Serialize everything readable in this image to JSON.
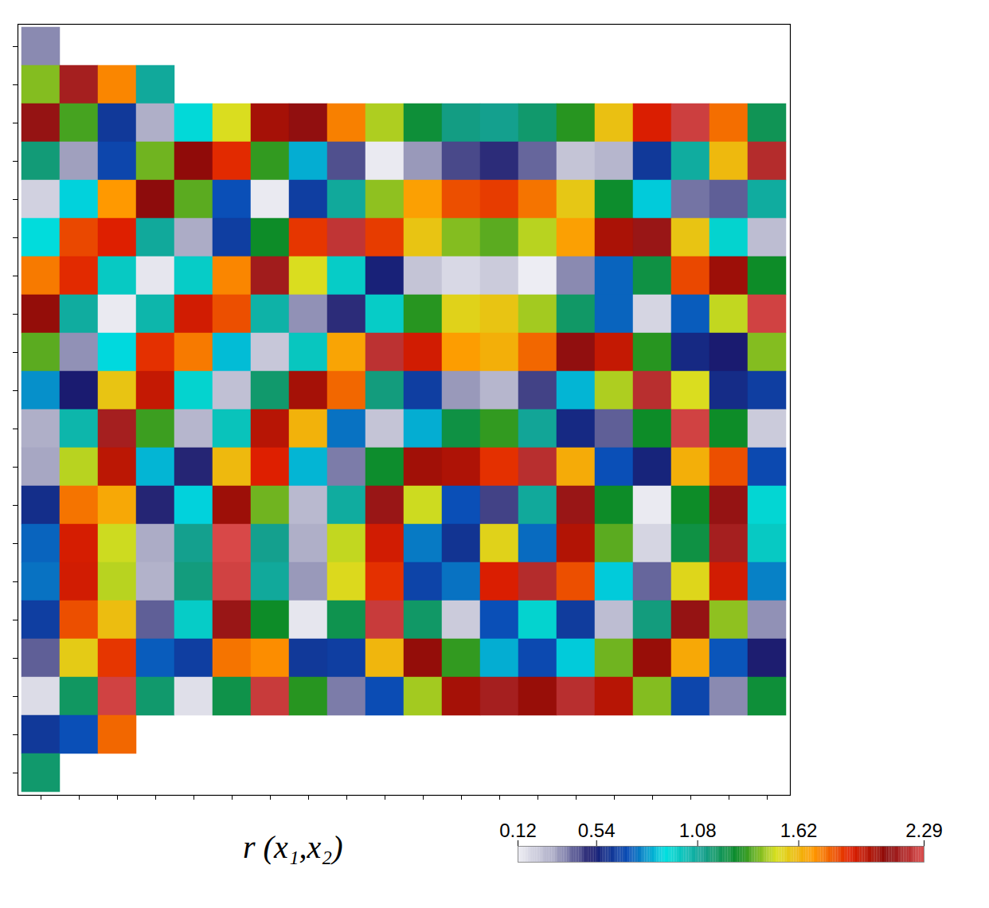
{
  "chart_data": {
    "type": "heatmap",
    "tick_labels": false,
    "colorbar": {
      "label": "r (x₁,x₂)",
      "range": [
        0.12,
        2.29
      ],
      "ticks": [
        0.12,
        0.54,
        1.08,
        1.62,
        2.29
      ]
    },
    "cells": [
      [
        0.36,
        null,
        null,
        null,
        null,
        null,
        null,
        null,
        null,
        null,
        null,
        null,
        null,
        null,
        null,
        null,
        null,
        null,
        null,
        null
      ],
      [
        1.42,
        2.16,
        1.73,
        1.08,
        null,
        null,
        null,
        null,
        null,
        null,
        null,
        null,
        null,
        null,
        null,
        null,
        null,
        null,
        null,
        null
      ],
      [
        2.12,
        1.36,
        0.63,
        0.3,
        0.93,
        1.51,
        2.03,
        2.11,
        1.74,
        1.46,
        1.26,
        1.13,
        1.11,
        1.17,
        1.33,
        1.59,
        1.91,
        2.26,
        1.77,
        1.21
      ],
      [
        1.15,
        0.33,
        0.68,
        1.4,
        2.08,
        1.88,
        1.34,
        0.84,
        0.44,
        0.13,
        0.34,
        0.45,
        0.49,
        0.41,
        0.24,
        0.28,
        0.63,
        1.07,
        1.61,
        2.2
      ],
      [
        0.2,
        0.89,
        1.7,
        2.1,
        1.38,
        0.71,
        0.13,
        0.65,
        1.08,
        1.43,
        1.68,
        1.82,
        1.85,
        1.76,
        1.57,
        1.28,
        0.88,
        0.39,
        0.42,
        1.07
      ],
      [
        0.92,
        1.83,
        1.9,
        1.08,
        0.31,
        0.65,
        1.29,
        1.86,
        2.23,
        1.85,
        1.58,
        1.42,
        1.38,
        1.47,
        1.68,
        2.02,
        2.13,
        1.58,
        0.95,
        0.26
      ],
      [
        1.75,
        1.88,
        0.98,
        0.14,
        0.97,
        1.73,
        2.15,
        1.51,
        0.97,
        0.54,
        0.24,
        0.18,
        0.22,
        0.12,
        0.36,
        0.74,
        1.24,
        1.83,
        2.05,
        1.29
      ],
      [
        2.07,
        1.07,
        0.13,
        1.04,
        1.93,
        1.82,
        1.05,
        0.35,
        0.49,
        0.97,
        1.33,
        1.54,
        1.58,
        1.45,
        1.18,
        0.74,
        0.19,
        0.73,
        1.48,
        2.27
      ],
      [
        1.38,
        0.35,
        0.9,
        1.87,
        1.75,
        0.86,
        0.23,
        0.99,
        1.67,
        2.22,
        1.93,
        1.69,
        1.64,
        1.78,
        2.11,
        1.96,
        1.33,
        0.57,
        0.52,
        1.42
      ],
      [
        0.8,
        0.52,
        1.58,
        1.96,
        0.95,
        0.25,
        1.17,
        2.03,
        1.78,
        1.14,
        0.65,
        0.34,
        0.28,
        0.46,
        0.85,
        1.46,
        2.21,
        1.51,
        0.58,
        0.65
      ],
      [
        0.3,
        1.04,
        2.16,
        1.35,
        0.28,
        1.0,
        1.99,
        1.63,
        0.76,
        0.24,
        0.84,
        1.24,
        1.34,
        1.09,
        0.57,
        0.42,
        1.29,
        2.27,
        1.29,
        0.22
      ],
      [
        0.32,
        1.47,
        1.98,
        0.85,
        0.5,
        1.61,
        1.9,
        0.85,
        0.38,
        1.28,
        2.04,
        2.01,
        1.87,
        2.21,
        1.65,
        0.71,
        0.55,
        1.64,
        1.82,
        0.69
      ],
      [
        0.59,
        1.76,
        1.66,
        0.5,
        0.89,
        2.05,
        1.4,
        0.27,
        1.07,
        2.13,
        1.49,
        0.71,
        0.46,
        1.08,
        2.13,
        1.29,
        0.13,
        1.29,
        2.12,
        0.94
      ],
      [
        0.74,
        1.92,
        1.49,
        0.31,
        1.11,
        2.29,
        1.11,
        0.3,
        1.48,
        1.93,
        0.77,
        0.61,
        1.54,
        0.75,
        2.0,
        1.38,
        0.19,
        1.24,
        2.16,
        0.98
      ],
      [
        0.76,
        1.93,
        1.47,
        0.29,
        1.14,
        2.27,
        1.08,
        0.34,
        1.52,
        1.87,
        0.67,
        0.76,
        1.91,
        2.2,
        1.82,
        0.88,
        0.41,
        1.53,
        1.93,
        0.78
      ],
      [
        0.65,
        1.82,
        1.6,
        0.42,
        0.97,
        2.13,
        1.29,
        0.14,
        1.22,
        2.25,
        1.18,
        0.22,
        0.71,
        0.95,
        0.64,
        0.26,
        1.14,
        2.12,
        1.43,
        0.35
      ],
      [
        0.42,
        1.56,
        1.86,
        0.73,
        0.65,
        1.76,
        1.72,
        0.63,
        0.65,
        1.62,
        2.07,
        1.34,
        0.84,
        0.69,
        0.88,
        1.4,
        2.06,
        1.66,
        0.72,
        0.51
      ],
      [
        0.17,
        1.19,
        2.27,
        1.17,
        0.16,
        1.23,
        2.25,
        1.33,
        0.38,
        0.7,
        1.45,
        2.03,
        2.16,
        2.06,
        2.21,
        1.99,
        1.42,
        0.68,
        0.36,
        1.26
      ],
      [
        0.63,
        0.71,
        1.78,
        null,
        null,
        null,
        null,
        null,
        null,
        null,
        null,
        null,
        null,
        null,
        null,
        null,
        null,
        null,
        null,
        null
      ],
      [
        1.17,
        null,
        null,
        null,
        null,
        null,
        null,
        null,
        null,
        null,
        null,
        null,
        null,
        null,
        null,
        null,
        null,
        null,
        null,
        null
      ]
    ]
  }
}
